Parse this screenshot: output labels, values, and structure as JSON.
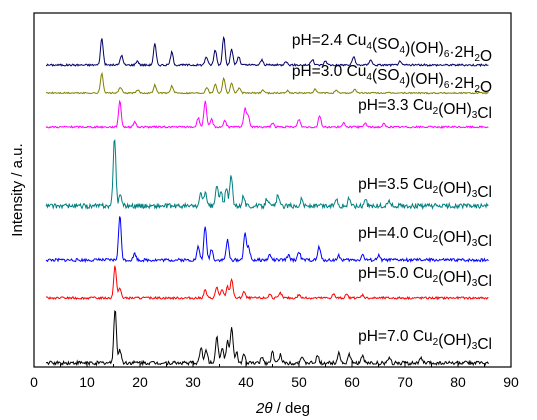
{
  "chart_data": {
    "type": "line",
    "xlabel_italic": "2θ",
    "xlabel_rest": " / deg",
    "ylabel": "Intensity / a.u.",
    "xlim": [
      0,
      90
    ],
    "xticks": [
      0,
      10,
      20,
      30,
      40,
      50,
      60,
      70,
      80,
      90
    ],
    "y_tick_labels": false,
    "grid": false,
    "series": [
      {
        "name": "pH=2.4 Cu4(SO4)(OH)6·2H2O",
        "label_parts": [
          [
            "pH=2.4 Cu",
            ""
          ],
          [
            "4",
            "sub"
          ],
          [
            "(SO",
            ""
          ],
          [
            "4",
            "sub"
          ],
          [
            ")(OH)",
            ""
          ],
          [
            "6",
            "sub"
          ],
          [
            "·2H",
            ""
          ],
          [
            "2",
            "sub"
          ],
          [
            "O",
            ""
          ]
        ],
        "color": "#000066",
        "peaks": [
          [
            12.8,
            0.95
          ],
          [
            16.5,
            0.35
          ],
          [
            19.5,
            0.15
          ],
          [
            22.8,
            0.75
          ],
          [
            26.0,
            0.45
          ],
          [
            32.5,
            0.3
          ],
          [
            34.2,
            0.55
          ],
          [
            35.8,
            1.0
          ],
          [
            37.3,
            0.55
          ],
          [
            38.6,
            0.3
          ],
          [
            43.0,
            0.18
          ],
          [
            47.5,
            0.15
          ],
          [
            52.5,
            0.2
          ],
          [
            55.0,
            0.15
          ],
          [
            60.3,
            0.3
          ],
          [
            63.5,
            0.2
          ],
          [
            69.0,
            0.12
          ]
        ]
      },
      {
        "name": "pH=3.0 Cu4(SO4)(OH)6·2H2O",
        "label_parts": [
          [
            "pH=3.0 Cu",
            ""
          ],
          [
            "4",
            "sub"
          ],
          [
            "(SO",
            ""
          ],
          [
            "4",
            "sub"
          ],
          [
            ")(OH)",
            ""
          ],
          [
            "6",
            "sub"
          ],
          [
            "·2H",
            ""
          ],
          [
            "2",
            "sub"
          ],
          [
            "O",
            ""
          ]
        ],
        "color": "#808000",
        "peaks": [
          [
            12.8,
            1.0
          ],
          [
            16.3,
            0.3
          ],
          [
            19.6,
            0.15
          ],
          [
            22.8,
            0.4
          ],
          [
            26.0,
            0.35
          ],
          [
            32.6,
            0.3
          ],
          [
            34.2,
            0.45
          ],
          [
            35.8,
            0.75
          ],
          [
            37.3,
            0.5
          ],
          [
            38.7,
            0.25
          ],
          [
            43.2,
            0.15
          ],
          [
            47.8,
            0.12
          ],
          [
            53.0,
            0.18
          ],
          [
            57.0,
            0.12
          ],
          [
            60.5,
            0.2
          ]
        ]
      },
      {
        "name": "pH=3.3 Cu2(OH)3Cl",
        "label_parts": [
          [
            "pH=3.3 Cu",
            ""
          ],
          [
            "2",
            "sub"
          ],
          [
            "(OH)",
            ""
          ],
          [
            "3",
            "sub"
          ],
          [
            "Cl",
            ""
          ]
        ],
        "color": "#ff00ff",
        "peaks": [
          [
            16.2,
            1.0
          ],
          [
            19.0,
            0.2
          ],
          [
            31.0,
            0.35
          ],
          [
            32.3,
            1.0
          ],
          [
            33.5,
            0.3
          ],
          [
            36.0,
            0.25
          ],
          [
            39.8,
            0.7
          ],
          [
            40.4,
            0.45
          ],
          [
            45.0,
            0.15
          ],
          [
            50.0,
            0.3
          ],
          [
            53.9,
            0.45
          ],
          [
            58.5,
            0.15
          ],
          [
            62.5,
            0.15
          ],
          [
            66.0,
            0.12
          ]
        ]
      },
      {
        "name": "pH=3.5 Cu2(OH)3Cl",
        "label_parts": [
          [
            "pH=3.5 Cu",
            ""
          ],
          [
            "2",
            "sub"
          ],
          [
            "(OH)",
            ""
          ],
          [
            "3",
            "sub"
          ],
          [
            "Cl",
            ""
          ]
        ],
        "color": "#008080",
        "peaks": [
          [
            15.2,
            1.0
          ],
          [
            16.3,
            0.18
          ],
          [
            31.5,
            0.18
          ],
          [
            32.3,
            0.2
          ],
          [
            34.5,
            0.3
          ],
          [
            35.3,
            0.2
          ],
          [
            36.3,
            0.25
          ],
          [
            37.2,
            0.45
          ],
          [
            39.5,
            0.15
          ],
          [
            44.0,
            0.12
          ],
          [
            46.0,
            0.15
          ],
          [
            50.5,
            0.1
          ],
          [
            57.0,
            0.12
          ],
          [
            59.5,
            0.12
          ],
          [
            62.5,
            0.1
          ],
          [
            67.0,
            0.08
          ]
        ]
      },
      {
        "name": "pH=4.0 Cu2(OH)3Cl",
        "label_parts": [
          [
            "pH=4.0 Cu",
            ""
          ],
          [
            "2",
            "sub"
          ],
          [
            "(OH)",
            ""
          ],
          [
            "3",
            "sub"
          ],
          [
            "Cl",
            ""
          ]
        ],
        "color": "#0000ff",
        "peaks": [
          [
            16.2,
            1.0
          ],
          [
            19.0,
            0.15
          ],
          [
            31.0,
            0.3
          ],
          [
            32.3,
            0.75
          ],
          [
            33.5,
            0.25
          ],
          [
            36.5,
            0.45
          ],
          [
            39.8,
            0.6
          ],
          [
            40.5,
            0.3
          ],
          [
            44.5,
            0.12
          ],
          [
            48.0,
            0.1
          ],
          [
            50.0,
            0.2
          ],
          [
            53.8,
            0.3
          ],
          [
            57.5,
            0.1
          ],
          [
            62.0,
            0.12
          ],
          [
            65.0,
            0.1
          ]
        ]
      },
      {
        "name": "pH=5.0 Cu2(OH)3Cl",
        "label_parts": [
          [
            "pH=5.0 Cu",
            ""
          ],
          [
            "2",
            "sub"
          ],
          [
            "(OH)",
            ""
          ],
          [
            "3",
            "sub"
          ],
          [
            "Cl",
            ""
          ]
        ],
        "color": "#ff0000",
        "peaks": [
          [
            15.3,
            1.0
          ],
          [
            16.2,
            0.3
          ],
          [
            32.3,
            0.25
          ],
          [
            34.5,
            0.35
          ],
          [
            35.5,
            0.25
          ],
          [
            36.5,
            0.35
          ],
          [
            37.3,
            0.6
          ],
          [
            39.6,
            0.2
          ],
          [
            44.5,
            0.12
          ],
          [
            46.5,
            0.15
          ],
          [
            50.0,
            0.1
          ],
          [
            56.5,
            0.12
          ],
          [
            59.0,
            0.1
          ],
          [
            62.0,
            0.1
          ]
        ]
      },
      {
        "name": "pH=7.0 Cu2(OH)3Cl",
        "label_parts": [
          [
            "pH=7.0 Cu",
            ""
          ],
          [
            "2",
            "sub"
          ],
          [
            "(OH)",
            ""
          ],
          [
            "3",
            "sub"
          ],
          [
            "Cl",
            ""
          ]
        ],
        "color": "#000000",
        "peaks": [
          [
            15.3,
            1.0
          ],
          [
            16.2,
            0.25
          ],
          [
            31.5,
            0.3
          ],
          [
            32.5,
            0.25
          ],
          [
            34.5,
            0.5
          ],
          [
            35.5,
            0.3
          ],
          [
            36.5,
            0.4
          ],
          [
            37.3,
            0.65
          ],
          [
            38.2,
            0.2
          ],
          [
            39.6,
            0.15
          ],
          [
            43.0,
            0.12
          ],
          [
            45.0,
            0.2
          ],
          [
            46.5,
            0.15
          ],
          [
            50.5,
            0.1
          ],
          [
            53.5,
            0.12
          ],
          [
            57.5,
            0.2
          ],
          [
            59.5,
            0.15
          ],
          [
            62.0,
            0.12
          ],
          [
            67.0,
            0.1
          ],
          [
            73.0,
            0.08
          ]
        ]
      }
    ]
  }
}
